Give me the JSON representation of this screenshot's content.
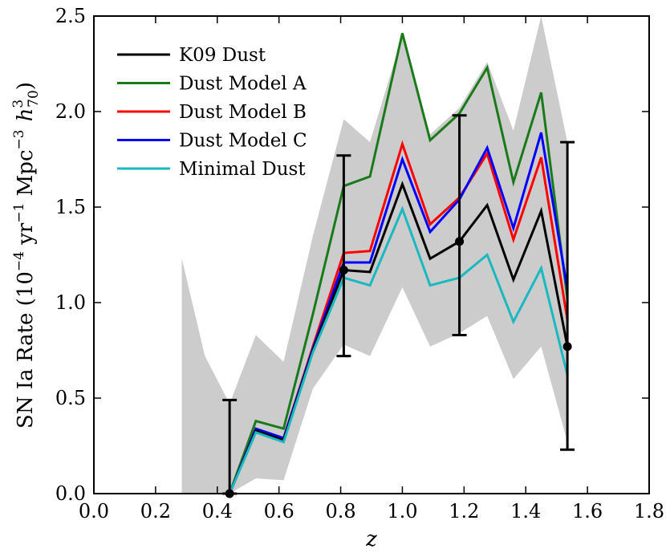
{
  "chart_data": {
    "type": "line",
    "title": "",
    "xlabel": "z",
    "ylabel": "SN Ia Rate (10⁻⁴ yr⁻¹ Mpc⁻³ h₇₀³)",
    "ylabel_parts": {
      "main": "SN Ia Rate (10",
      "e1": "−4",
      "u1": " yr",
      "e2": "−1",
      "u2": " Mpc",
      "e3": "−3",
      "h": "h",
      "hsup": "3",
      "hsub": "70",
      "close": ")"
    },
    "xlim": [
      0.0,
      1.8
    ],
    "ylim": [
      0.0,
      2.5
    ],
    "xticks": [
      "0.0",
      "0.2",
      "0.4",
      "0.6",
      "0.8",
      "1.0",
      "1.2",
      "1.4",
      "1.6",
      "1.8"
    ],
    "yticks": [
      "0.0",
      "0.5",
      "1.0",
      "1.5",
      "2.0",
      "2.5"
    ],
    "legend_position": "top-left",
    "x": [
      0.44,
      0.525,
      0.615,
      0.71,
      0.81,
      0.895,
      1.0,
      1.09,
      1.185,
      1.275,
      1.36,
      1.45,
      1.535
    ],
    "series": [
      {
        "name": "K09 Dust",
        "color": "#000000",
        "values": [
          0.0,
          0.33,
          0.28,
          0.75,
          1.17,
          1.16,
          1.62,
          1.23,
          1.32,
          1.51,
          1.12,
          1.48,
          0.77
        ]
      },
      {
        "name": "Dust Model A",
        "color": "#1a7a1a",
        "values": [
          0.0,
          0.38,
          0.34,
          0.94,
          1.61,
          1.66,
          2.41,
          1.85,
          1.99,
          2.23,
          1.63,
          2.1,
          1.02
        ]
      },
      {
        "name": "Dust Model B",
        "color": "#ff0000",
        "values": [
          0.0,
          0.34,
          0.29,
          0.77,
          1.26,
          1.27,
          1.83,
          1.41,
          1.55,
          1.78,
          1.33,
          1.76,
          0.91
        ]
      },
      {
        "name": "Dust Model C",
        "color": "#0000ff",
        "values": [
          0.0,
          0.34,
          0.29,
          0.76,
          1.21,
          1.21,
          1.75,
          1.37,
          1.54,
          1.81,
          1.39,
          1.89,
          1.07
        ]
      },
      {
        "name": "Minimal Dust",
        "color": "#1ab8c0",
        "values": [
          0.0,
          0.32,
          0.27,
          0.74,
          1.13,
          1.09,
          1.49,
          1.09,
          1.13,
          1.25,
          0.9,
          1.18,
          0.62
        ]
      }
    ],
    "uncertainty_band": {
      "color": "#cccccc",
      "x": [
        0.285,
        0.36,
        0.44,
        0.525,
        0.615,
        0.71,
        0.81,
        0.895,
        1.0,
        1.09,
        1.185,
        1.275,
        1.36,
        1.45,
        1.535
      ],
      "upper": [
        1.23,
        0.72,
        0.47,
        0.83,
        0.69,
        1.35,
        1.96,
        1.84,
        2.4,
        1.88,
        2.02,
        2.26,
        1.9,
        2.55,
        1.84
      ],
      "lower": [
        0.0,
        0.0,
        0.0,
        0.08,
        0.07,
        0.55,
        0.78,
        0.72,
        1.08,
        0.77,
        0.84,
        0.93,
        0.6,
        0.77,
        0.27
      ]
    },
    "data_points": {
      "color": "#000000",
      "x": [
        0.44,
        0.81,
        1.185,
        1.535
      ],
      "y": [
        0.0,
        1.17,
        1.32,
        0.77
      ],
      "yerr_upper": [
        0.49,
        1.77,
        1.98,
        1.84
      ],
      "yerr_lower": [
        0.0,
        0.72,
        0.83,
        0.23
      ]
    }
  }
}
